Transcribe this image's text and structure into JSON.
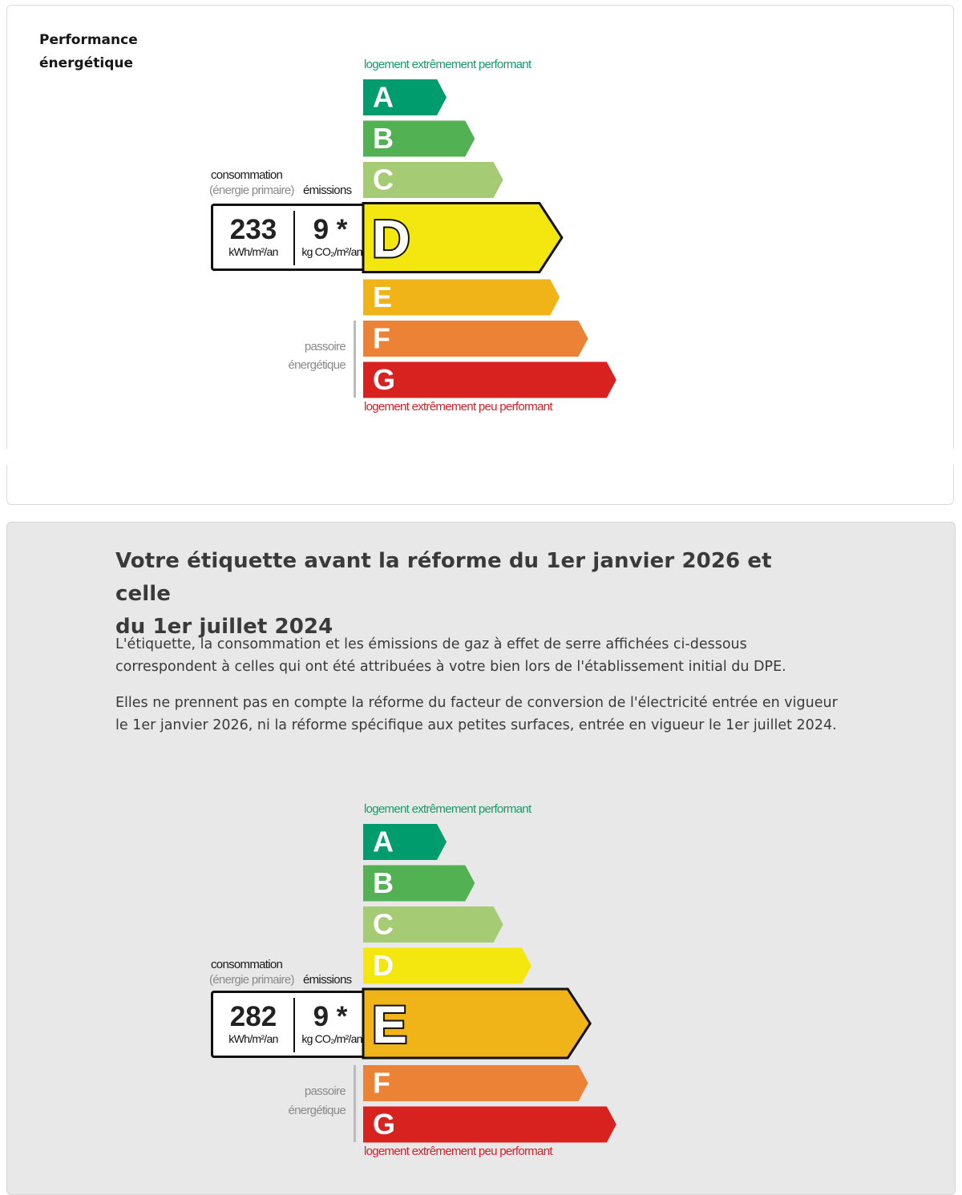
{
  "top_card": {
    "title_line1": "Performance",
    "title_line2": "énergétique"
  },
  "reform_section": {
    "title_line1": "Votre étiquette avant la réforme du 1er janvier 2026 et celle",
    "title_line2": "du 1er juillet 2024",
    "paragraph1_line1": "L'étiquette, la consommation et les émissions de gaz à effet de serre affichées ci-dessous",
    "paragraph1_line2": "correspondent à celles qui ont été attribuées à votre bien lors de l'établissement initial du DPE.",
    "paragraph2_line1": "Elles ne prennent pas en compte la réforme du facteur de conversion de l'électricité entrée en vigueur",
    "paragraph2_line2": "le 1er janvier 2026, ni la réforme spécifique aux petites surfaces, entrée en vigueur le 1er juillet 2024."
  },
  "labels": {
    "top_caption": "logement extrêmement performant",
    "bottom_caption": "logement extrêmement peu performant",
    "consumption": "consommation",
    "consumption_sub": "(énergie primaire)",
    "emissions": "émissions",
    "passoire_1": "passoire",
    "passoire_2": "énergétique",
    "consumption_unit": "kWh/m²/an",
    "emissions_unit": "kg CO₂/m²/an"
  },
  "dpe_current": {
    "rating": "D",
    "consumption": "233",
    "emissions": "9 *"
  },
  "dpe_before_reform": {
    "rating": "E",
    "consumption": "282",
    "emissions": "9 *"
  },
  "classes": [
    {
      "letter": "A",
      "color": "#009c6d"
    },
    {
      "letter": "B",
      "color": "#52b153"
    },
    {
      "letter": "C",
      "color": "#a5cc74"
    },
    {
      "letter": "D",
      "color": "#f4e70f"
    },
    {
      "letter": "E",
      "color": "#f0b419"
    },
    {
      "letter": "F",
      "color": "#eb8235"
    },
    {
      "letter": "G",
      "color": "#d7221f"
    }
  ]
}
